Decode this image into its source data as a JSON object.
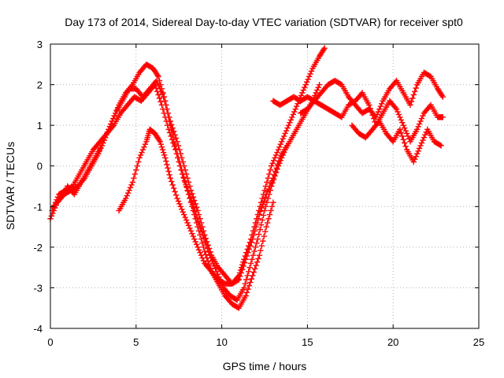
{
  "chart_data": {
    "type": "scatter",
    "title": "Day 173 of 2014, Sidereal Day-to-day VTEC variation (SDTVAR) for receiver spt0",
    "xlabel": "GPS time / hours",
    "ylabel": "SDTVAR / TECUs",
    "xlim": [
      0,
      25
    ],
    "ylim": [
      -4,
      3
    ],
    "xticks": [
      "0",
      "5",
      "10",
      "15",
      "20",
      "25"
    ],
    "yticks": [
      "-4",
      "-3",
      "-2",
      "-1",
      "0",
      "1",
      "2",
      "3"
    ],
    "grid": true,
    "marker": "+",
    "color": "#ff0000",
    "series": [
      {
        "x": [
          0.0,
          0.4,
          0.8,
          1.2,
          1.6,
          2.0,
          2.4,
          2.8,
          3.2,
          3.6,
          4.0,
          4.4,
          4.8,
          5.2,
          5.6,
          6.0,
          6.3,
          6.7,
          7.0,
          7.4,
          7.8,
          8.2,
          8.6,
          9.0,
          9.4,
          9.8,
          10.2,
          10.6,
          11.0,
          11.4,
          11.8,
          12.2,
          12.6,
          13.0
        ],
        "y": [
          -1.3,
          -0.9,
          -0.7,
          -0.6,
          -0.5,
          -0.3,
          0.0,
          0.3,
          0.7,
          1.1,
          1.5,
          1.8,
          2.0,
          2.3,
          2.5,
          2.4,
          2.2,
          1.6,
          1.0,
          0.3,
          -0.3,
          -0.9,
          -1.5,
          -2.1,
          -2.6,
          -2.9,
          -3.2,
          -3.4,
          -3.5,
          -3.2,
          -2.7,
          -2.2,
          -1.5,
          -0.9
        ]
      },
      {
        "x": [
          0.2,
          0.6,
          1.0,
          1.4,
          1.8,
          2.2,
          2.6,
          3.0,
          3.4,
          3.8,
          4.2,
          4.6,
          5.0,
          5.4,
          5.8,
          6.2,
          6.6,
          7.0,
          7.4,
          7.8,
          8.2,
          8.6,
          9.0,
          9.4,
          9.8,
          10.2,
          10.6,
          11.0,
          11.4,
          11.8,
          12.2,
          12.6,
          13.0,
          13.4,
          13.8
        ],
        "y": [
          -1.0,
          -0.8,
          -0.5,
          -0.7,
          -0.4,
          -0.1,
          0.2,
          0.5,
          0.9,
          1.3,
          1.6,
          1.9,
          1.9,
          1.7,
          1.9,
          2.1,
          1.7,
          1.1,
          0.6,
          0.0,
          -0.6,
          -1.1,
          -1.7,
          -2.2,
          -2.5,
          -2.7,
          -2.9,
          -2.8,
          -2.3,
          -1.8,
          -1.2,
          -0.7,
          -0.3,
          0.2,
          0.5
        ]
      },
      {
        "x": [
          0.1,
          0.5,
          0.9,
          1.3,
          1.7,
          2.1,
          2.5,
          2.9,
          3.3,
          3.7,
          4.1,
          4.5,
          4.9,
          5.3,
          5.7,
          6.1,
          6.5,
          6.9,
          7.3,
          7.7,
          8.1,
          8.5,
          8.9,
          9.3,
          9.7,
          10.1,
          10.5,
          10.9,
          11.3,
          11.7,
          12.1,
          12.5,
          12.9,
          13.3,
          13.7,
          14.1,
          14.5,
          14.9,
          15.3,
          15.7
        ],
        "y": [
          -1.1,
          -0.7,
          -0.6,
          -0.5,
          -0.2,
          0.1,
          0.4,
          0.6,
          0.8,
          1.0,
          1.3,
          1.5,
          1.7,
          1.6,
          1.8,
          2.0,
          1.5,
          0.9,
          0.4,
          -0.2,
          -0.7,
          -1.2,
          -1.7,
          -2.2,
          -2.6,
          -3.0,
          -3.2,
          -3.3,
          -3.0,
          -2.4,
          -1.8,
          -1.1,
          -0.5,
          0.0,
          0.4,
          0.7,
          1.0,
          1.3,
          1.6,
          2.0
        ]
      },
      {
        "x": [
          4.0,
          4.4,
          4.8,
          5.2,
          5.6,
          5.8,
          6.1,
          6.4,
          6.7,
          7.0,
          7.4,
          7.8,
          8.2,
          8.6,
          9.0,
          9.4,
          9.8,
          10.2,
          10.6,
          11.0,
          11.3,
          11.7,
          12.1,
          12.5,
          12.9,
          13.3,
          13.7,
          14.1,
          14.5,
          14.9,
          15.3,
          15.7,
          16.0
        ],
        "y": [
          -1.1,
          -0.8,
          -0.4,
          0.2,
          0.6,
          0.9,
          0.8,
          0.6,
          0.2,
          -0.3,
          -0.8,
          -1.2,
          -1.6,
          -2.0,
          -2.4,
          -2.6,
          -2.8,
          -2.9,
          -2.9,
          -2.7,
          -2.3,
          -1.8,
          -1.2,
          -0.6,
          0.0,
          0.4,
          0.8,
          1.2,
          1.6,
          2.0,
          2.4,
          2.7,
          2.9
        ]
      },
      {
        "x": [
          13.0,
          13.4,
          13.8,
          14.2,
          14.6,
          15.0,
          15.4,
          15.8,
          16.2,
          16.6,
          17.0,
          17.4,
          17.8,
          18.2,
          18.6,
          19.0,
          19.4,
          19.8,
          20.2,
          20.6,
          21.0,
          21.4,
          21.8,
          22.2,
          22.6,
          22.9
        ],
        "y": [
          1.6,
          1.5,
          1.6,
          1.7,
          1.6,
          1.7,
          1.6,
          1.5,
          1.4,
          1.3,
          1.2,
          1.5,
          1.6,
          1.8,
          1.5,
          1.0,
          1.3,
          1.6,
          1.4,
          1.0,
          0.6,
          0.9,
          1.3,
          1.5,
          1.2,
          1.2
        ]
      },
      {
        "x": [
          14.6,
          15.0,
          15.4,
          15.8,
          16.2,
          16.6,
          17.0,
          17.4,
          17.8,
          18.2,
          18.6,
          19.0,
          19.4,
          19.8,
          20.2,
          20.6,
          21.0,
          21.4,
          21.8,
          22.2,
          22.6,
          22.9
        ],
        "y": [
          1.3,
          1.4,
          1.6,
          1.8,
          2.0,
          2.1,
          2.0,
          1.7,
          1.5,
          1.3,
          1.4,
          1.2,
          1.6,
          1.9,
          2.1,
          1.8,
          1.5,
          2.0,
          2.3,
          2.2,
          1.9,
          1.7
        ]
      },
      {
        "x": [
          17.6,
          18.0,
          18.4,
          18.8,
          19.2,
          19.6,
          20.0,
          20.4,
          20.8,
          21.2,
          21.6,
          22.0,
          22.4,
          22.8
        ],
        "y": [
          1.0,
          0.8,
          0.7,
          0.9,
          1.1,
          0.8,
          0.6,
          0.9,
          0.4,
          0.1,
          0.5,
          0.9,
          0.6,
          0.5
        ]
      }
    ]
  }
}
